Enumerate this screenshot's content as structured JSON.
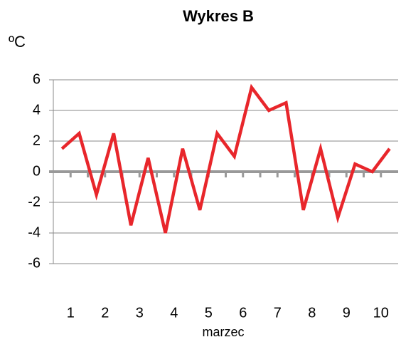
{
  "chart_data": {
    "type": "line",
    "title": "Wykres B",
    "y_label": "ºC",
    "x_label": "marzec",
    "x": [
      0.75,
      1.25,
      1.75,
      2.25,
      2.75,
      3.25,
      3.75,
      4.25,
      4.75,
      5.25,
      5.75,
      6.25,
      6.75,
      7.25,
      7.75,
      8.25,
      8.75,
      9.25,
      9.75,
      10.25
    ],
    "series": [
      {
        "name": "Wykres B",
        "color": "#e8262b",
        "values": [
          1.5,
          2.5,
          -1.5,
          2.5,
          -3.5,
          0.9,
          -4,
          1.5,
          -2.5,
          2.5,
          1,
          5.5,
          4,
          4.5,
          -2.5,
          1.5,
          -3,
          0.5,
          0,
          1.5
        ]
      }
    ],
    "xlim": [
      0.5,
      10.5
    ],
    "xticks": [
      1,
      2,
      3,
      4,
      5,
      6,
      7,
      8,
      9,
      10
    ],
    "ylim": [
      -6,
      6
    ],
    "yticks": [
      6,
      4,
      2,
      0,
      -2,
      -4,
      -6
    ],
    "grid": true
  }
}
